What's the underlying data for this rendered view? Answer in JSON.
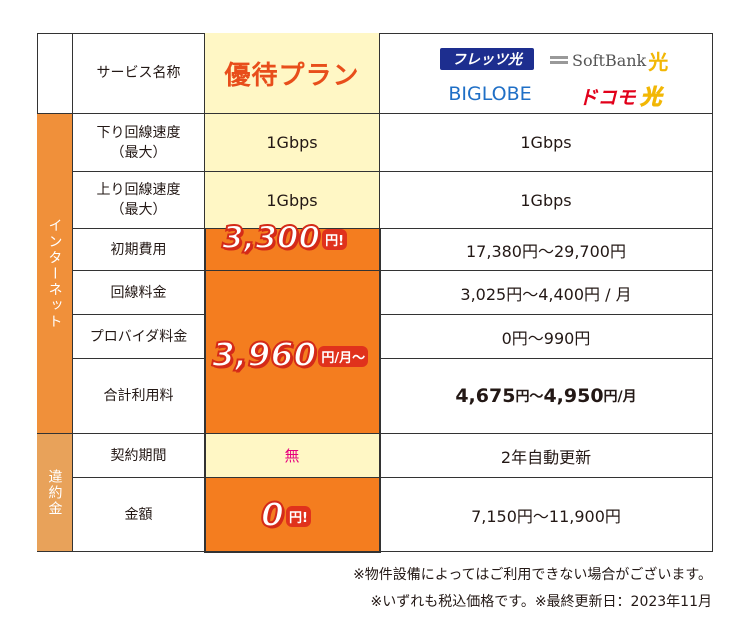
{
  "header": {
    "service_label": "サービス名称",
    "plan_name": "優待プラン",
    "logos": {
      "flets": "フレッツ光",
      "softbank": "SoftBank",
      "softbank_hikari": "光",
      "biglobe": "BIGLOBE",
      "docomo": "ドコモ",
      "docomo_hikari": "光"
    }
  },
  "groups": {
    "internet": "インターネット",
    "penalty": "違約金"
  },
  "rows": {
    "down": {
      "label1": "下り回線速度",
      "label2": "（最大）",
      "plan": "1Gbps",
      "other": "1Gbps"
    },
    "up": {
      "label1": "上り回線速度",
      "label2": "（最大）",
      "plan": "1Gbps",
      "other": "1Gbps"
    },
    "initial": {
      "label": "初期費用",
      "other": "17,380円〜29,700円"
    },
    "line": {
      "label": "回線料金",
      "other": "3,025円〜4,400円 / 月"
    },
    "provider": {
      "label": "プロバイダ料金",
      "other": "0円〜990円"
    },
    "total": {
      "label": "合計利用料",
      "other_main": "4,675",
      "other_unit1": "円〜",
      "other_main2": "4,950",
      "other_unit2": "円/月"
    },
    "contract": {
      "label": "契約期間",
      "plan": "無",
      "other": "2年自動更新"
    },
    "amount": {
      "label": "金額",
      "other": "7,150円〜11,900円"
    }
  },
  "prices": {
    "initial": {
      "value": "3,300",
      "unit": "円!"
    },
    "monthly": {
      "value": "3,960",
      "unit": "円/月〜"
    },
    "penalty": {
      "value": "0",
      "unit": "円!"
    }
  },
  "notes": {
    "line1": "※物件設備によってはご利用できない場合がございます。",
    "line2": "※いずれも税込価格です。※最終更新日：2023年11月"
  },
  "colors": {
    "orange": "#f47d1f",
    "highlight": "#fff7c5",
    "price_red": "#e0321c",
    "group_penalty": "#e8a25a"
  }
}
